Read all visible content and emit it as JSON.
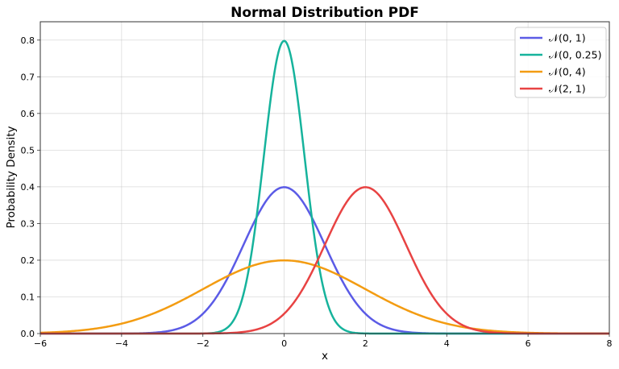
{
  "chart_data": {
    "type": "line",
    "title": "Normal Distribution PDF",
    "xlabel": "x",
    "ylabel": "Probability Density",
    "xlim": [
      -6,
      8
    ],
    "ylim": [
      0,
      0.85
    ],
    "xticks": [
      -6,
      -4,
      -2,
      0,
      2,
      4,
      6,
      8
    ],
    "xtick_labels": [
      "−6",
      "−4",
      "−2",
      "0",
      "2",
      "4",
      "6",
      "8"
    ],
    "yticks": [
      0.0,
      0.1,
      0.2,
      0.3,
      0.4,
      0.5,
      0.6,
      0.7,
      0.8
    ],
    "ytick_labels": [
      "0.0",
      "0.1",
      "0.2",
      "0.3",
      "0.4",
      "0.5",
      "0.6",
      "0.7",
      "0.8"
    ],
    "grid": true,
    "legend_position": "upper right",
    "series": [
      {
        "name": "𝒩(0, 1)",
        "mu": 0,
        "variance": 1,
        "color": "#5b5be6",
        "peak": 0.399
      },
      {
        "name": "𝒩(0, 0.25)",
        "mu": 0,
        "variance": 0.25,
        "color": "#16b39c",
        "peak": 0.798
      },
      {
        "name": "𝒩(0, 4)",
        "mu": 0,
        "variance": 4,
        "color": "#f39c12",
        "peak": 0.199
      },
      {
        "name": "𝒩(2, 1)",
        "mu": 2,
        "variance": 1,
        "color": "#e84343",
        "peak": 0.399
      }
    ]
  }
}
